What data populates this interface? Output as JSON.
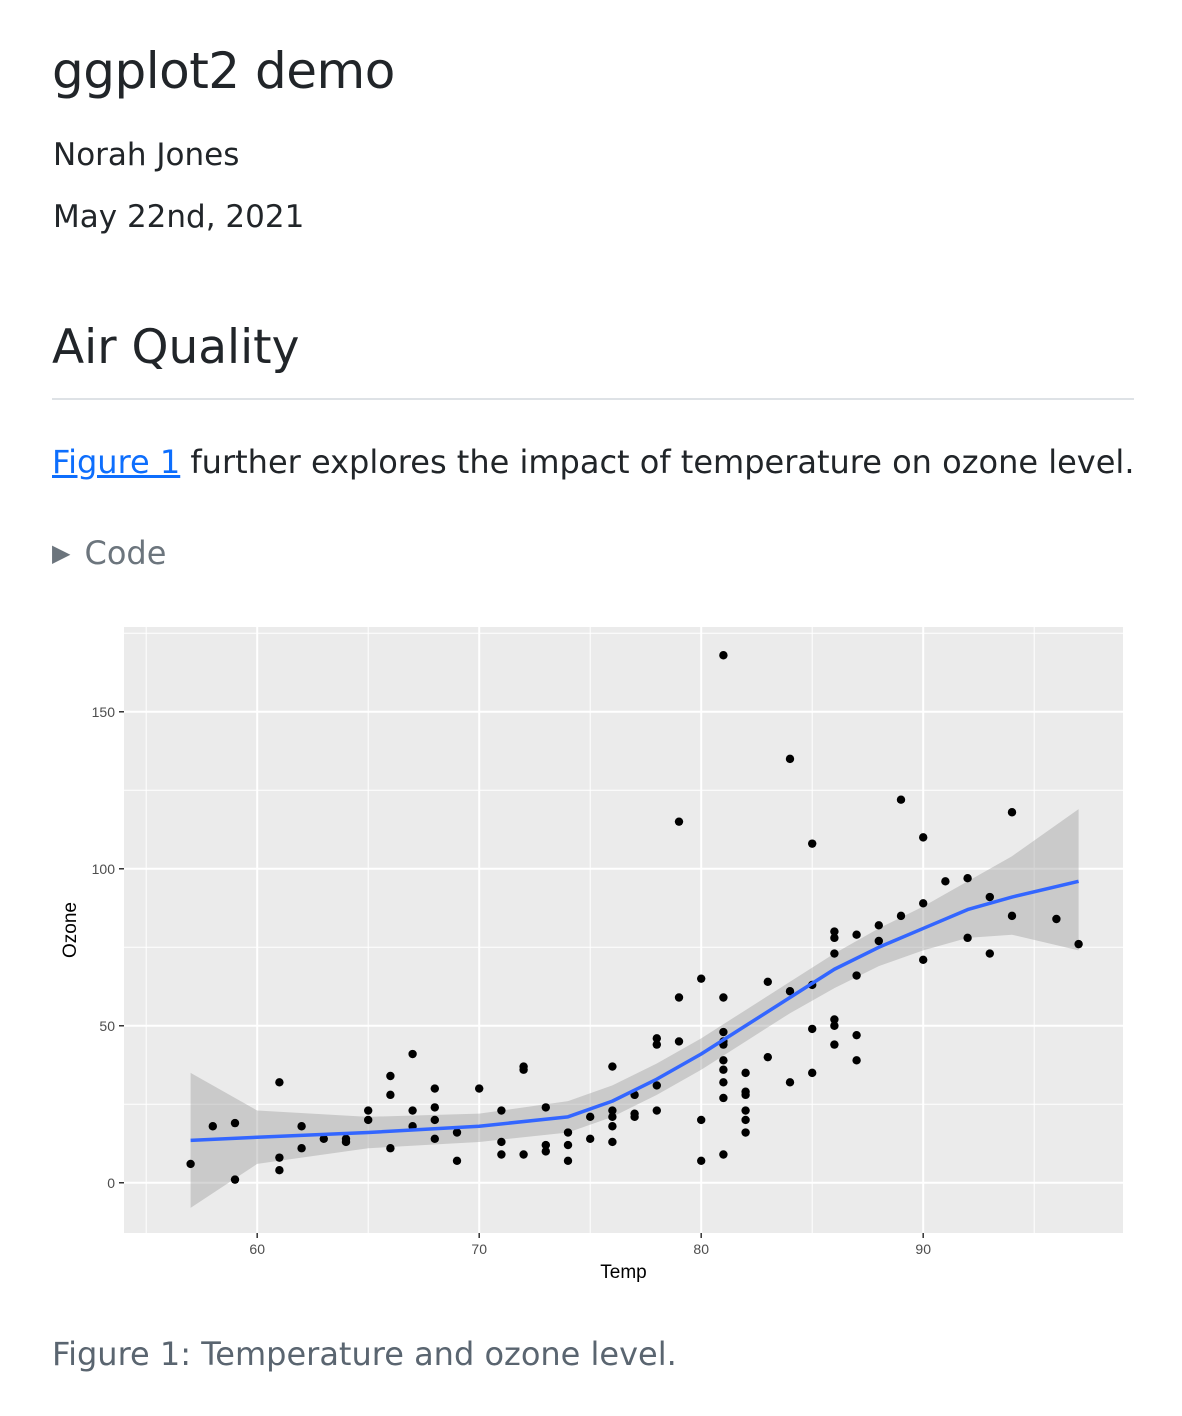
{
  "title": "ggplot2 demo",
  "author": "Norah Jones",
  "date": "May 22nd, 2021",
  "section_heading": "Air Quality",
  "paragraph": {
    "link_text": "Figure 1",
    "text": " further explores the impact of temperature on ozone level."
  },
  "code_toggle": {
    "label": "Code",
    "icon": "triangle-right-icon"
  },
  "caption": "Figure 1: Temperature and ozone level.",
  "colors": {
    "panel": "#EBEBEB",
    "smooth_line": "#3366FF",
    "ribbon": "#999999",
    "link": "#0d6efd"
  },
  "chart_data": {
    "type": "scatter",
    "xlabel": "Temp",
    "ylabel": "Ozone",
    "xlim": [
      54,
      99
    ],
    "ylim": [
      -16,
      177
    ],
    "x_ticks": [
      60,
      70,
      80,
      90
    ],
    "y_ticks": [
      0,
      50,
      100,
      150
    ],
    "grid": true,
    "points": [
      [
        57,
        6
      ],
      [
        58,
        18
      ],
      [
        59,
        19
      ],
      [
        59,
        1
      ],
      [
        61,
        32
      ],
      [
        61,
        8
      ],
      [
        61,
        4
      ],
      [
        62,
        18
      ],
      [
        62,
        11
      ],
      [
        63,
        14
      ],
      [
        64,
        14
      ],
      [
        64,
        13
      ],
      [
        65,
        23
      ],
      [
        65,
        20
      ],
      [
        66,
        34
      ],
      [
        66,
        28
      ],
      [
        66,
        11
      ],
      [
        67,
        41
      ],
      [
        67,
        23
      ],
      [
        67,
        18
      ],
      [
        68,
        30
      ],
      [
        68,
        24
      ],
      [
        68,
        20
      ],
      [
        68,
        14
      ],
      [
        69,
        16
      ],
      [
        69,
        7
      ],
      [
        70,
        30
      ],
      [
        71,
        23
      ],
      [
        71,
        13
      ],
      [
        71,
        9
      ],
      [
        72,
        37
      ],
      [
        72,
        36
      ],
      [
        72,
        9
      ],
      [
        73,
        24
      ],
      [
        73,
        12
      ],
      [
        73,
        10
      ],
      [
        74,
        16
      ],
      [
        74,
        12
      ],
      [
        74,
        7
      ],
      [
        75,
        21
      ],
      [
        75,
        14
      ],
      [
        76,
        37
      ],
      [
        76,
        23
      ],
      [
        76,
        21
      ],
      [
        76,
        18
      ],
      [
        76,
        13
      ],
      [
        77,
        28
      ],
      [
        77,
        22
      ],
      [
        77,
        21
      ],
      [
        78,
        46
      ],
      [
        78,
        44
      ],
      [
        78,
        31
      ],
      [
        78,
        23
      ],
      [
        79,
        115
      ],
      [
        79,
        59
      ],
      [
        79,
        45
      ],
      [
        80,
        65
      ],
      [
        80,
        20
      ],
      [
        80,
        7
      ],
      [
        81,
        168
      ],
      [
        81,
        59
      ],
      [
        81,
        48
      ],
      [
        81,
        45
      ],
      [
        81,
        44
      ],
      [
        81,
        39
      ],
      [
        81,
        36
      ],
      [
        81,
        32
      ],
      [
        81,
        27
      ],
      [
        81,
        9
      ],
      [
        82,
        35
      ],
      [
        82,
        29
      ],
      [
        82,
        28
      ],
      [
        82,
        23
      ],
      [
        82,
        20
      ],
      [
        82,
        16
      ],
      [
        83,
        64
      ],
      [
        83,
        40
      ],
      [
        84,
        135
      ],
      [
        84,
        61
      ],
      [
        84,
        32
      ],
      [
        85,
        108
      ],
      [
        85,
        63
      ],
      [
        85,
        49
      ],
      [
        85,
        35
      ],
      [
        86,
        80
      ],
      [
        86,
        78
      ],
      [
        86,
        73
      ],
      [
        86,
        52
      ],
      [
        86,
        50
      ],
      [
        86,
        44
      ],
      [
        87,
        79
      ],
      [
        87,
        66
      ],
      [
        87,
        47
      ],
      [
        87,
        39
      ],
      [
        88,
        82
      ],
      [
        88,
        77
      ],
      [
        89,
        122
      ],
      [
        89,
        85
      ],
      [
        90,
        110
      ],
      [
        90,
        89
      ],
      [
        90,
        71
      ],
      [
        91,
        96
      ],
      [
        92,
        97
      ],
      [
        92,
        78
      ],
      [
        93,
        91
      ],
      [
        93,
        73
      ],
      [
        94,
        118
      ],
      [
        94,
        85
      ],
      [
        96,
        84
      ],
      [
        97,
        76
      ]
    ],
    "smooth": {
      "method": "loess",
      "x": [
        57,
        60,
        65,
        70,
        74,
        76,
        78,
        80,
        82,
        84,
        86,
        88,
        90,
        92,
        94,
        97
      ],
      "y": [
        13.5,
        14.5,
        16,
        18,
        21,
        26,
        33,
        41,
        50,
        59,
        68,
        75,
        81,
        87,
        91,
        96
      ],
      "ymin": [
        -8,
        6,
        11,
        13,
        16,
        21,
        28,
        36,
        45,
        54,
        62,
        69,
        74,
        78,
        79,
        74
      ],
      "ymax": [
        35,
        23,
        21,
        22,
        26,
        31,
        38,
        46,
        55,
        64,
        73,
        81,
        88,
        96,
        104,
        119
      ]
    }
  }
}
